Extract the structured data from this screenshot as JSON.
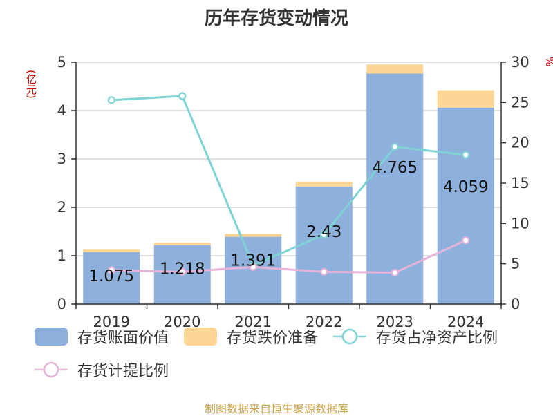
{
  "title": "历年存货变动情况",
  "unit_left": "(亿元)",
  "unit_right": "%",
  "source": "制图数据来自恒生聚源数据库",
  "colors": {
    "book_value": "#8eb0dd",
    "impairment": "#fdd696",
    "net_asset_ratio": "#7fd3d4",
    "provision_ratio": "#e6b3d9",
    "grid": "#cccccc",
    "axis": "#333333"
  },
  "chart_data": {
    "type": "bar",
    "categories": [
      "2019",
      "2020",
      "2021",
      "2022",
      "2023",
      "2024"
    ],
    "ylim": [
      0,
      5
    ],
    "y_ticks": [
      0,
      1,
      2,
      3,
      4,
      5
    ],
    "y2lim": [
      0,
      30
    ],
    "y2_ticks": [
      0,
      5,
      10,
      15,
      20,
      25,
      30
    ],
    "series": [
      {
        "name": "存货账面价值",
        "kind": "bar",
        "axis": "left",
        "values": [
          1.075,
          1.218,
          1.391,
          2.43,
          4.765,
          4.059
        ],
        "labels": [
          "1.075",
          "1.218",
          "1.391",
          "2.43",
          "4.765",
          "4.059"
        ]
      },
      {
        "name": "存货跌价准备",
        "kind": "bar",
        "axis": "left",
        "stacked": true,
        "values": [
          0.05,
          0.05,
          0.06,
          0.09,
          0.19,
          0.36
        ]
      },
      {
        "name": "存货占净资产比例",
        "kind": "line",
        "axis": "right",
        "values": [
          25.3,
          25.8,
          4.8,
          8.6,
          19.5,
          18.5
        ]
      },
      {
        "name": "存货计提比例",
        "kind": "line",
        "axis": "right",
        "values": [
          4.2,
          4.0,
          4.6,
          4.0,
          3.9,
          7.9
        ]
      }
    ],
    "legend_position": "bottom",
    "grid": true
  }
}
